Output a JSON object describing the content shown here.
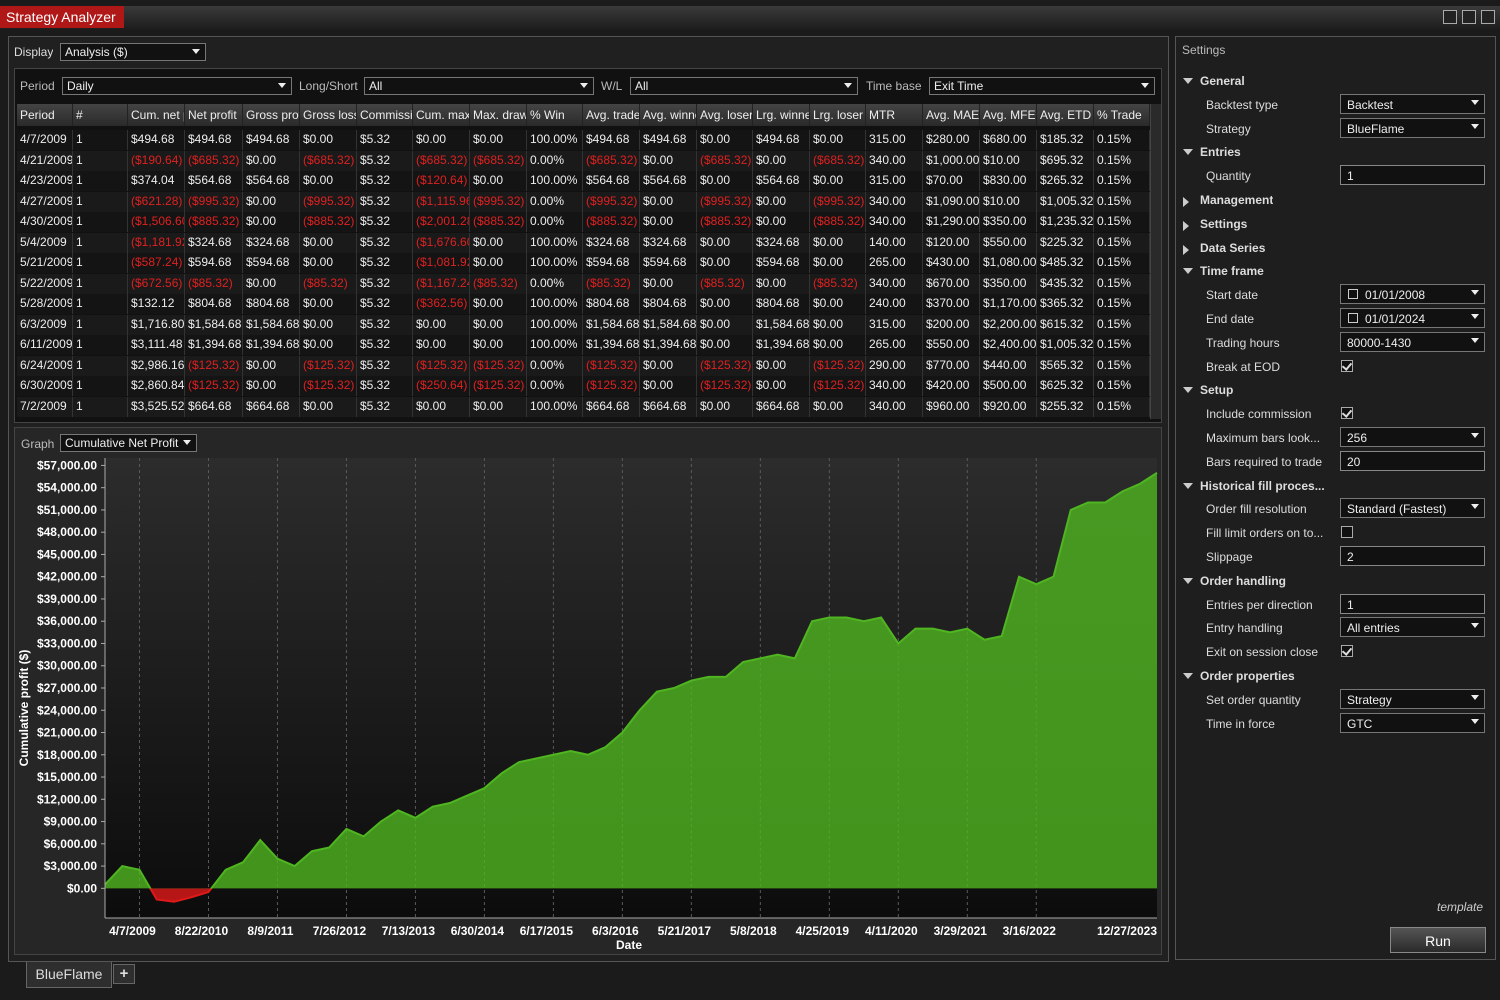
{
  "window": {
    "title": "Strategy Analyzer"
  },
  "toolbar": {
    "display_label": "Display",
    "display_value": "Analysis ($)",
    "period_label": "Period",
    "period_value": "Daily",
    "long_short_label": "Long/Short",
    "long_short_value": "All",
    "wl_label": "W/L",
    "wl_value": "All",
    "time_base_label": "Time base",
    "time_base_value": "Exit Time"
  },
  "table": {
    "columns": [
      "Period",
      "#",
      "Cum. net profit",
      "Net profit",
      "Gross profit",
      "Gross loss",
      "Commission",
      "Cum. max",
      "Max. drawdown",
      "% Win",
      "Avg. trade",
      "Avg. winner",
      "Avg. loser",
      "Lrg. winner",
      "Lrg. loser",
      "MTR",
      "Avg. MAE",
      "Avg. MFE",
      "Avg. ETD",
      "% Trade"
    ],
    "rows": [
      [
        "4/7/2009",
        "1",
        "$494.68",
        "$494.68",
        "$494.68",
        "$0.00",
        "$5.32",
        "$0.00",
        "$0.00",
        "100.00%",
        "$494.68",
        "$494.68",
        "$0.00",
        "$494.68",
        "$0.00",
        "315.00",
        "$280.00",
        "$680.00",
        "$185.32",
        "0.15%"
      ],
      [
        "4/21/2009",
        "1",
        "($190.64)",
        "($685.32)",
        "$0.00",
        "($685.32)",
        "$5.32",
        "($685.32)",
        "($685.32)",
        "0.00%",
        "($685.32)",
        "$0.00",
        "($685.32)",
        "$0.00",
        "($685.32)",
        "340.00",
        "$1,000.00",
        "$10.00",
        "$695.32",
        "0.15%"
      ],
      [
        "4/23/2009",
        "1",
        "$374.04",
        "$564.68",
        "$564.68",
        "$0.00",
        "$5.32",
        "($120.64)",
        "$0.00",
        "100.00%",
        "$564.68",
        "$564.68",
        "$0.00",
        "$564.68",
        "$0.00",
        "315.00",
        "$70.00",
        "$830.00",
        "$265.32",
        "0.15%"
      ],
      [
        "4/27/2009",
        "1",
        "($621.28)",
        "($995.32)",
        "$0.00",
        "($995.32)",
        "$5.32",
        "($1,115.96)",
        "($995.32)",
        "0.00%",
        "($995.32)",
        "$0.00",
        "($995.32)",
        "$0.00",
        "($995.32)",
        "340.00",
        "$1,090.00",
        "$10.00",
        "$1,005.32",
        "0.15%"
      ],
      [
        "4/30/2009",
        "1",
        "($1,506.60)",
        "($885.32)",
        "$0.00",
        "($885.32)",
        "$5.32",
        "($2,001.28)",
        "($885.32)",
        "0.00%",
        "($885.32)",
        "$0.00",
        "($885.32)",
        "$0.00",
        "($885.32)",
        "340.00",
        "$1,290.00",
        "$350.00",
        "$1,235.32",
        "0.15%"
      ],
      [
        "5/4/2009",
        "1",
        "($1,181.92)",
        "$324.68",
        "$324.68",
        "$0.00",
        "$5.32",
        "($1,676.60)",
        "$0.00",
        "100.00%",
        "$324.68",
        "$324.68",
        "$0.00",
        "$324.68",
        "$0.00",
        "140.00",
        "$120.00",
        "$550.00",
        "$225.32",
        "0.15%"
      ],
      [
        "5/21/2009",
        "1",
        "($587.24)",
        "$594.68",
        "$594.68",
        "$0.00",
        "$5.32",
        "($1,081.92)",
        "$0.00",
        "100.00%",
        "$594.68",
        "$594.68",
        "$0.00",
        "$594.68",
        "$0.00",
        "265.00",
        "$430.00",
        "$1,080.00",
        "$485.32",
        "0.15%"
      ],
      [
        "5/22/2009",
        "1",
        "($672.56)",
        "($85.32)",
        "$0.00",
        "($85.32)",
        "$5.32",
        "($1,167.24)",
        "($85.32)",
        "0.00%",
        "($85.32)",
        "$0.00",
        "($85.32)",
        "$0.00",
        "($85.32)",
        "340.00",
        "$670.00",
        "$350.00",
        "$435.32",
        "0.15%"
      ],
      [
        "5/28/2009",
        "1",
        "$132.12",
        "$804.68",
        "$804.68",
        "$0.00",
        "$5.32",
        "($362.56)",
        "$0.00",
        "100.00%",
        "$804.68",
        "$804.68",
        "$0.00",
        "$804.68",
        "$0.00",
        "240.00",
        "$370.00",
        "$1,170.00",
        "$365.32",
        "0.15%"
      ],
      [
        "6/3/2009",
        "1",
        "$1,716.80",
        "$1,584.68",
        "$1,584.68",
        "$0.00",
        "$5.32",
        "$0.00",
        "$0.00",
        "100.00%",
        "$1,584.68",
        "$1,584.68",
        "$0.00",
        "$1,584.68",
        "$0.00",
        "315.00",
        "$200.00",
        "$2,200.00",
        "$615.32",
        "0.15%"
      ],
      [
        "6/11/2009",
        "1",
        "$3,111.48",
        "$1,394.68",
        "$1,394.68",
        "$0.00",
        "$5.32",
        "$0.00",
        "$0.00",
        "100.00%",
        "$1,394.68",
        "$1,394.68",
        "$0.00",
        "$1,394.68",
        "$0.00",
        "265.00",
        "$550.00",
        "$2,400.00",
        "$1,005.32",
        "0.15%"
      ],
      [
        "6/24/2009",
        "1",
        "$2,986.16",
        "($125.32)",
        "$0.00",
        "($125.32)",
        "$5.32",
        "($125.32)",
        "($125.32)",
        "0.00%",
        "($125.32)",
        "$0.00",
        "($125.32)",
        "$0.00",
        "($125.32)",
        "290.00",
        "$770.00",
        "$440.00",
        "$565.32",
        "0.15%"
      ],
      [
        "6/30/2009",
        "1",
        "$2,860.84",
        "($125.32)",
        "$0.00",
        "($125.32)",
        "$5.32",
        "($250.64)",
        "($125.32)",
        "0.00%",
        "($125.32)",
        "$0.00",
        "($125.32)",
        "$0.00",
        "($125.32)",
        "340.00",
        "$420.00",
        "$500.00",
        "$625.32",
        "0.15%"
      ],
      [
        "7/2/2009",
        "1",
        "$3,525.52",
        "$664.68",
        "$664.68",
        "$0.00",
        "$5.32",
        "$0.00",
        "$0.00",
        "100.00%",
        "$664.68",
        "$664.68",
        "$0.00",
        "$664.68",
        "$0.00",
        "340.00",
        "$960.00",
        "$920.00",
        "$255.32",
        "0.15%"
      ]
    ]
  },
  "graph": {
    "label": "Graph",
    "value": "Cumulative Net Profit"
  },
  "chart_data": {
    "type": "area",
    "y_label": "Cumulative profit ($)",
    "x_label": "Date",
    "categories": [
      null,
      null,
      "4/7/2009",
      null,
      null,
      null,
      "8/22/2010",
      null,
      null,
      null,
      "8/9/2011",
      null,
      null,
      null,
      "7/26/2012",
      null,
      null,
      null,
      "7/13/2013",
      null,
      null,
      null,
      "6/30/2014",
      null,
      null,
      null,
      "6/17/2015",
      null,
      null,
      null,
      "6/3/2016",
      null,
      null,
      null,
      "5/21/2017",
      null,
      null,
      null,
      "5/8/2018",
      null,
      null,
      null,
      "4/25/2019",
      null,
      null,
      null,
      "4/11/2020",
      null,
      null,
      null,
      "3/29/2021",
      null,
      null,
      null,
      "3/16/2022",
      null,
      null,
      null,
      null,
      null,
      null,
      "12/27/2023"
    ],
    "values": [
      500,
      3000,
      2500,
      -1500,
      -1800,
      -1200,
      -500,
      2500,
      3500,
      6500,
      4000,
      3000,
      5000,
      5500,
      8000,
      7000,
      9000,
      10500,
      9500,
      11000,
      11500,
      12500,
      13500,
      15500,
      17000,
      17500,
      18000,
      18500,
      18000,
      19000,
      21000,
      24000,
      26500,
      27000,
      28000,
      28500,
      28500,
      30500,
      31000,
      31500,
      31000,
      36000,
      36500,
      36500,
      36000,
      36500,
      33000,
      35000,
      35000,
      34500,
      35000,
      33500,
      34000,
      42000,
      41000,
      42000,
      51000,
      52000,
      52000,
      53500,
      54500,
      56000
    ],
    "ylim": [
      -4000,
      58000
    ],
    "yticks": [
      {
        "value": 0,
        "label": "$0.00"
      },
      {
        "value": 3000,
        "label": "$3,000.00"
      },
      {
        "value": 6000,
        "label": "$6,000.00"
      },
      {
        "value": 9000,
        "label": "$9,000.00"
      },
      {
        "value": 12000,
        "label": "$12,000.00"
      },
      {
        "value": 15000,
        "label": "$15,000.00"
      },
      {
        "value": 18000,
        "label": "$18,000.00"
      },
      {
        "value": 21000,
        "label": "$21,000.00"
      },
      {
        "value": 24000,
        "label": "$24,000.00"
      },
      {
        "value": 27000,
        "label": "$27,000.00"
      },
      {
        "value": 30000,
        "label": "$30,000.00"
      },
      {
        "value": 33000,
        "label": "$33,000.00"
      },
      {
        "value": 36000,
        "label": "$36,000.00"
      },
      {
        "value": 39000,
        "label": "$39,000.00"
      },
      {
        "value": 42000,
        "label": "$42,000.00"
      },
      {
        "value": 45000,
        "label": "$45,000.00"
      },
      {
        "value": 48000,
        "label": "$48,000.00"
      },
      {
        "value": 51000,
        "label": "$51,000.00"
      },
      {
        "value": 54000,
        "label": "$54,000.00"
      },
      {
        "value": 57000,
        "label": "$57,000.00"
      }
    ],
    "color": "#4fb520",
    "negative_color": "#e01818",
    "grid": true
  },
  "settings": {
    "title": "Settings",
    "sections": [
      {
        "name": "General",
        "expanded": true,
        "items": [
          {
            "label": "Backtest type",
            "value": "Backtest",
            "control": "dropdown"
          },
          {
            "label": "Strategy",
            "value": "BlueFlame",
            "control": "dropdown"
          }
        ]
      },
      {
        "name": "Entries",
        "expanded": true,
        "items": [
          {
            "label": "Quantity",
            "value": "1",
            "control": "input"
          }
        ]
      },
      {
        "name": "Management",
        "expanded": false,
        "items": []
      },
      {
        "name": "Settings",
        "expanded": false,
        "items": []
      },
      {
        "name": "Data Series",
        "expanded": false,
        "items": []
      },
      {
        "name": "Time frame",
        "expanded": true,
        "items": [
          {
            "label": "Start date",
            "value": "01/01/2008",
            "control": "date"
          },
          {
            "label": "End date",
            "value": "01/01/2024",
            "control": "date"
          },
          {
            "label": "Trading hours",
            "value": "80000-1430",
            "control": "dropdown"
          },
          {
            "label": "Break at EOD",
            "checked": true,
            "control": "checkbox"
          }
        ]
      },
      {
        "name": "Setup",
        "expanded": true,
        "items": [
          {
            "label": "Include commission",
            "checked": true,
            "control": "checkbox"
          },
          {
            "label": "Maximum bars look...",
            "value": "256",
            "control": "dropdown"
          },
          {
            "label": "Bars required to trade",
            "value": "20",
            "control": "input"
          }
        ]
      },
      {
        "name": "Historical fill proces...",
        "expanded": true,
        "items": [
          {
            "label": "Order fill resolution",
            "value": "Standard (Fastest)",
            "control": "dropdown"
          },
          {
            "label": "Fill limit orders on to...",
            "checked": false,
            "control": "checkbox"
          },
          {
            "label": "Slippage",
            "value": "2",
            "control": "input"
          }
        ]
      },
      {
        "name": "Order handling",
        "expanded": true,
        "items": [
          {
            "label": "Entries per direction",
            "value": "1",
            "control": "input"
          },
          {
            "label": "Entry handling",
            "value": "All entries",
            "control": "dropdown"
          },
          {
            "label": "Exit on session close",
            "checked": true,
            "control": "checkbox"
          }
        ]
      },
      {
        "name": "Order properties",
        "expanded": true,
        "items": [
          {
            "label": "Set order quantity",
            "value": "Strategy",
            "control": "dropdown"
          },
          {
            "label": "Time in force",
            "value": "GTC",
            "control": "dropdown"
          }
        ]
      }
    ]
  },
  "footer": {
    "template": "template",
    "run": "Run",
    "tab": "BlueFlame",
    "add_tab": "+"
  }
}
